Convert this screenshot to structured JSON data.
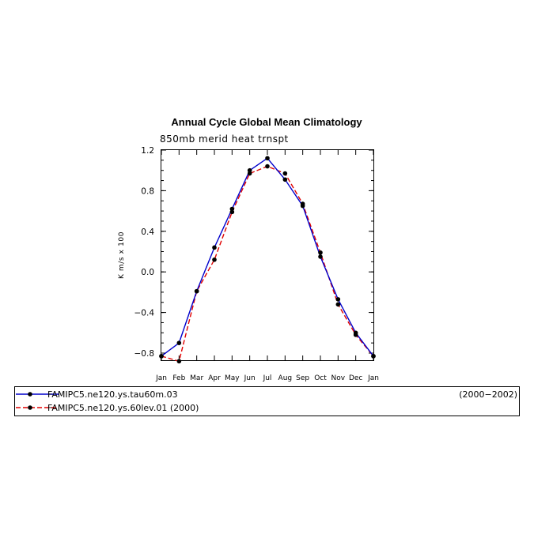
{
  "chart_data": {
    "type": "line",
    "title": "Annual Cycle Global Mean Climatology",
    "subtitle": "850mb merid heat trnspt",
    "xlabel": "",
    "ylabel": "K m/s x 100",
    "categories": [
      "Jan",
      "Feb",
      "Mar",
      "Apr",
      "May",
      "Jun",
      "Jul",
      "Aug",
      "Sep",
      "Oct",
      "Nov",
      "Dec",
      "Jan"
    ],
    "ylim": [
      -0.85,
      1.2
    ],
    "yticks": [
      1.2,
      0.8,
      0.4,
      0.0,
      -0.4,
      -0.8
    ],
    "ytick_labels": [
      "1.2",
      "0.8",
      "0.4",
      "0.0",
      "−0.4",
      "−0.8"
    ],
    "grid": false,
    "legend_position": "bottom",
    "series": [
      {
        "name": "FAMIPC5.ne120.ys.tau60m.03",
        "years": "(2000−2002)",
        "color": "#0000cc",
        "dash": "solid",
        "values": [
          -0.83,
          -0.7,
          -0.19,
          0.24,
          0.62,
          1.0,
          1.12,
          0.91,
          0.65,
          0.15,
          -0.27,
          -0.6,
          -0.83
        ]
      },
      {
        "name": "FAMIPC5.ne120.ys.60lev.01 (2000)",
        "years": "",
        "color": "#e00000",
        "dash": "dashed",
        "values": [
          -0.83,
          -0.88,
          -0.19,
          0.12,
          0.59,
          0.97,
          1.04,
          0.97,
          0.67,
          0.19,
          -0.32,
          -0.62,
          -0.83
        ]
      }
    ]
  }
}
